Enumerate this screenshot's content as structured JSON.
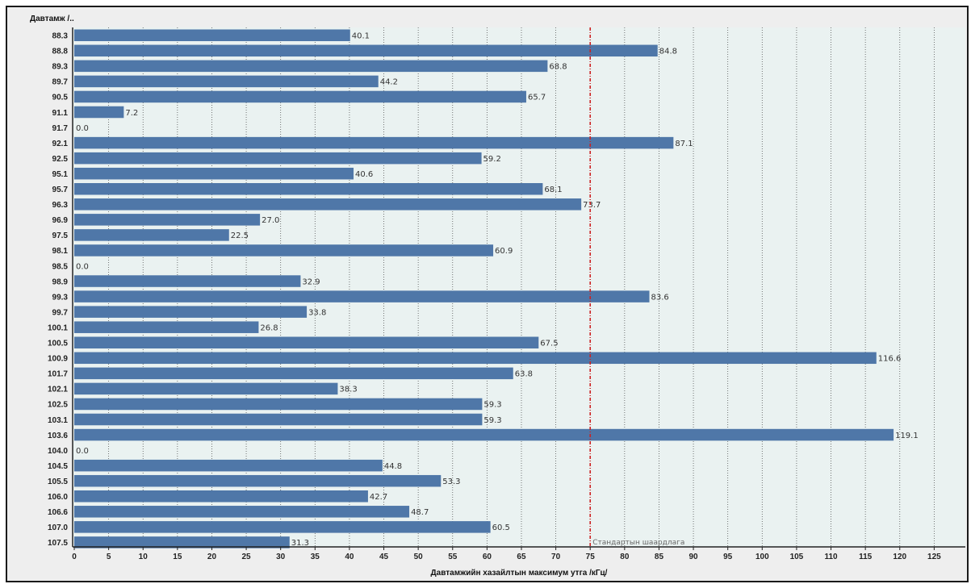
{
  "chart_data": {
    "type": "bar",
    "orientation": "horizontal",
    "ylabel": "Давтамж /..",
    "xlabel": "Давтамжийн хазайлтын максимум утга /кГц/",
    "xlim": [
      0,
      126
    ],
    "xticks": [
      0,
      5,
      10,
      15,
      20,
      25,
      30,
      35,
      40,
      45,
      50,
      55,
      60,
      65,
      70,
      75,
      80,
      85,
      90,
      95,
      100,
      105,
      110,
      115,
      120,
      125
    ],
    "grid": true,
    "reference_line": {
      "value": 75,
      "label": "Стандартын шаардлага",
      "color": "#cc2222"
    },
    "categories": [
      "88.3",
      "88.8",
      "89.3",
      "89.7",
      "90.5",
      "91.1",
      "91.7",
      "92.1",
      "92.5",
      "95.1",
      "95.7",
      "96.3",
      "96.9",
      "97.5",
      "98.1",
      "98.5",
      "98.9",
      "99.3",
      "99.7",
      "100.1",
      "100.5",
      "100.9",
      "101.7",
      "102.1",
      "102.5",
      "103.1",
      "103.6",
      "104.0",
      "104.5",
      "105.5",
      "106.0",
      "106.6",
      "107.0",
      "107.5"
    ],
    "values": [
      40.1,
      84.8,
      68.8,
      44.2,
      65.7,
      7.2,
      0.0,
      87.1,
      59.2,
      40.6,
      68.1,
      73.7,
      27.0,
      22.5,
      60.9,
      0.0,
      32.9,
      83.6,
      33.8,
      26.8,
      67.5,
      116.6,
      63.8,
      38.3,
      59.3,
      59.3,
      119.1,
      0.0,
      44.8,
      53.3,
      42.7,
      48.7,
      60.5,
      31.3
    ],
    "value_labels": [
      "40.1",
      "84.8",
      "68.8",
      "44.2",
      "65.7",
      "7.2",
      "0.0",
      "87.1",
      "59.2",
      "40.6",
      "68.1",
      "73.7",
      "27.0",
      "22.5",
      "60.9",
      "0.0",
      "32.9",
      "83.6",
      "33.8",
      "26.8",
      "67.5",
      "116.6",
      "63.8",
      "38.3",
      "59.3",
      "59.3",
      "119.1",
      "0.0",
      "44.8",
      "53.3",
      "42.7",
      "48.7",
      "60.5",
      "31.3"
    ],
    "bar_color": "#4f77a8",
    "plot_background": "#eaf2f1"
  }
}
